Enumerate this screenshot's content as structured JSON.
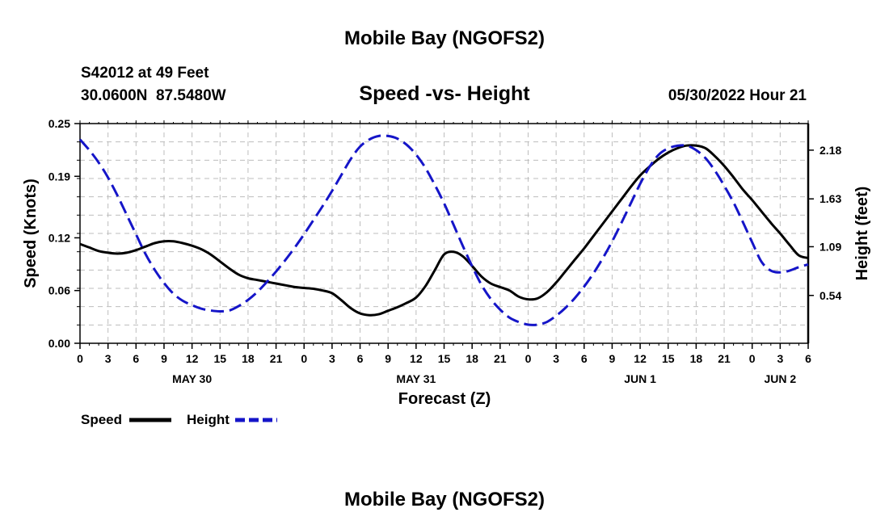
{
  "top_title": "Mobile Bay (NGOFS2)",
  "bottom_title": "Mobile Bay (NGOFS2)",
  "station": {
    "name": "S42012 at 49 Feet",
    "coords": "30.0600N  87.5480W"
  },
  "timestamp": "05/30/2022 Hour 21",
  "legend": {
    "speed": "Speed",
    "height": "Height"
  },
  "colors": {
    "speed": "#000000",
    "height": "#1515c8"
  },
  "chart_data": {
    "type": "line",
    "title": "Speed -vs- Height",
    "xlabel": "Forecast (Z)",
    "ylabel_left": "Speed (Knots)",
    "ylabel_right": "Height (feet)",
    "x_range_hours": [
      0,
      78
    ],
    "x_ticks": [
      0,
      3,
      6,
      9,
      12,
      15,
      18,
      21,
      24,
      27,
      30,
      33,
      36,
      39,
      42,
      45,
      48,
      51,
      54,
      57,
      60,
      63,
      66,
      69,
      72,
      75,
      78
    ],
    "x_tick_labels": [
      "0",
      "3",
      "6",
      "9",
      "12",
      "15",
      "18",
      "21",
      "0",
      "3",
      "6",
      "9",
      "12",
      "15",
      "18",
      "21",
      "0",
      "3",
      "6",
      "9",
      "12",
      "15",
      "18",
      "21",
      "0",
      "3",
      "6"
    ],
    "date_labels": [
      {
        "hour": 12,
        "label": "MAY 30"
      },
      {
        "hour": 36,
        "label": "MAY 31"
      },
      {
        "hour": 60,
        "label": "JUN 1"
      },
      {
        "hour": 75,
        "label": "JUN 2"
      }
    ],
    "ylim_left": [
      0,
      0.25
    ],
    "y_ticks_left": [
      0.0,
      0.06,
      0.12,
      0.19,
      0.25
    ],
    "y_tick_labels_left": [
      "0.00",
      "0.06",
      "0.12",
      "0.19",
      "0.25"
    ],
    "ylim_right": [
      0,
      2.48
    ],
    "y_ticks_right": [
      0.54,
      1.09,
      1.63,
      2.18
    ],
    "y_tick_labels_right": [
      "0.54",
      "1.09",
      "1.63",
      "2.18"
    ],
    "series": [
      {
        "name": "Speed",
        "axis": "left",
        "style": "solid",
        "x": [
          0,
          1,
          2,
          3,
          4,
          5,
          6,
          7,
          8,
          9,
          10,
          11,
          12,
          13,
          14,
          15,
          16,
          17,
          18,
          19,
          20,
          21,
          22,
          23,
          24,
          25,
          26,
          27,
          28,
          29,
          30,
          31,
          32,
          33,
          34,
          35,
          36,
          37,
          38,
          39,
          40,
          41,
          42,
          43,
          44,
          45,
          46,
          47,
          48,
          49,
          50,
          51,
          52,
          53,
          54,
          55,
          56,
          57,
          58,
          59,
          60,
          61,
          62,
          63,
          64,
          65,
          66,
          67,
          68,
          69,
          70,
          71,
          72,
          73,
          74,
          75,
          76,
          77,
          78
        ],
        "values": [
          0.113,
          0.109,
          0.105,
          0.103,
          0.102,
          0.103,
          0.106,
          0.11,
          0.114,
          0.116,
          0.116,
          0.114,
          0.111,
          0.107,
          0.101,
          0.093,
          0.085,
          0.078,
          0.074,
          0.072,
          0.07,
          0.068,
          0.066,
          0.064,
          0.063,
          0.062,
          0.06,
          0.057,
          0.049,
          0.04,
          0.034,
          0.032,
          0.033,
          0.037,
          0.041,
          0.046,
          0.052,
          0.065,
          0.083,
          0.101,
          0.104,
          0.099,
          0.088,
          0.076,
          0.068,
          0.064,
          0.06,
          0.053,
          0.05,
          0.051,
          0.058,
          0.069,
          0.082,
          0.095,
          0.108,
          0.122,
          0.136,
          0.15,
          0.164,
          0.178,
          0.191,
          0.201,
          0.21,
          0.217,
          0.222,
          0.225,
          0.225,
          0.222,
          0.213,
          0.202,
          0.189,
          0.175,
          0.163,
          0.15,
          0.137,
          0.125,
          0.112,
          0.1,
          0.097
        ]
      },
      {
        "name": "Height",
        "axis": "right",
        "style": "dashed",
        "x": [
          0,
          1,
          2,
          3,
          4,
          5,
          6,
          7,
          8,
          9,
          10,
          11,
          12,
          13,
          14,
          15,
          16,
          17,
          18,
          19,
          20,
          21,
          22,
          23,
          24,
          25,
          26,
          27,
          28,
          29,
          30,
          31,
          32,
          33,
          34,
          35,
          36,
          37,
          38,
          39,
          40,
          41,
          42,
          43,
          44,
          45,
          46,
          47,
          48,
          49,
          50,
          51,
          52,
          53,
          54,
          55,
          56,
          57,
          58,
          59,
          60,
          61,
          62,
          63,
          64,
          65,
          66,
          67,
          68,
          69,
          70,
          71,
          72,
          73,
          74,
          75,
          76,
          77,
          78
        ],
        "values": [
          2.3,
          2.18,
          2.04,
          1.87,
          1.67,
          1.45,
          1.23,
          1.01,
          0.83,
          0.68,
          0.56,
          0.48,
          0.43,
          0.39,
          0.37,
          0.36,
          0.37,
          0.42,
          0.49,
          0.58,
          0.69,
          0.81,
          0.94,
          1.08,
          1.23,
          1.39,
          1.55,
          1.72,
          1.9,
          2.08,
          2.22,
          2.3,
          2.34,
          2.34,
          2.31,
          2.24,
          2.13,
          1.98,
          1.79,
          1.58,
          1.34,
          1.1,
          0.87,
          0.66,
          0.5,
          0.38,
          0.29,
          0.24,
          0.21,
          0.21,
          0.24,
          0.31,
          0.4,
          0.51,
          0.64,
          0.79,
          0.96,
          1.15,
          1.36,
          1.58,
          1.8,
          1.99,
          2.13,
          2.2,
          2.23,
          2.23,
          2.18,
          2.09,
          1.95,
          1.78,
          1.59,
          1.37,
          1.14,
          0.92,
          0.82,
          0.8,
          0.82,
          0.86,
          0.89
        ]
      }
    ]
  }
}
